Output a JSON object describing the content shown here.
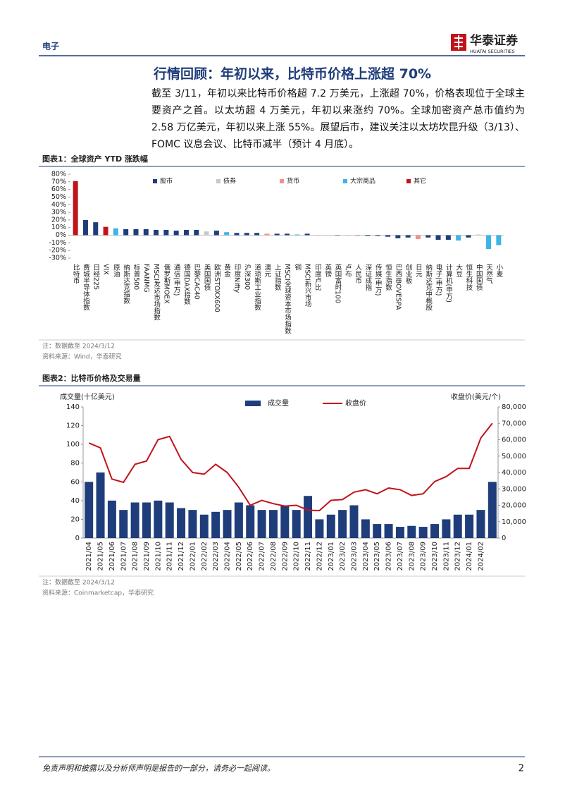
{
  "header": {
    "section": "电子",
    "brand": "华泰证券",
    "brand_en": "HUATAI SECURITIES"
  },
  "heading": "行情回顾：年初以来，比特币价格上涨超 70%",
  "paragraph": "截至 3/11，年初以来比特币价格超 7.2 万美元，上涨超 70%，价格表现位于全球主要资产之首。以太坊超 4 万美元，年初以来涨约 70%。全球加密资产总市值约为 2.58 万亿美元，年初以来上涨 55%。展望后市，建议关注以太坊坎昆升级（3/13）、FOMC 议息会议、比特币减半（预计 4 月底）。",
  "chart_data": [
    {
      "type": "bar",
      "title": "图表1：全球资产 YTD 涨跌幅",
      "categories": [
        "比特币",
        "费城半导体指数",
        "日经225",
        "VIX",
        "原油",
        "纳斯达克指数",
        "标普500",
        "FAANMG",
        "MSCI发达市场指数",
        "俄罗斯MOEX",
        "通信(申万)",
        "德国DAX指数",
        "巴黎CAC40",
        "美国国债",
        "欧洲STOXX600",
        "黄金",
        "印度Nifty",
        "沪深300",
        "道琼斯工业指数",
        "澳元",
        "上证指数",
        "MSCI全球资本市场指数",
        "铜",
        "MSCI新兴市场",
        "印度卢比",
        "英镑",
        "英国富时100",
        "卢布",
        "人民币",
        "深证成指",
        "传媒(申万)",
        "恒生指数",
        "巴西IBOVESPA",
        "创业板",
        "日元",
        "纳斯达克中概股",
        "电子(申万)",
        "计算机(申万)",
        "大豆",
        "恒生科技",
        "中国国债",
        "天然气",
        "小麦"
      ],
      "series": [
        {
          "name": "股市",
          "color": "#1f3d7a",
          "values": [
            null,
            20,
            17,
            null,
            null,
            8,
            8,
            8,
            7,
            7,
            6,
            7,
            7,
            null,
            6,
            null,
            3,
            3,
            3,
            null,
            2,
            2,
            null,
            2,
            null,
            null,
            -0.5,
            null,
            null,
            -1,
            -1,
            -2,
            -4,
            -3,
            null,
            -3,
            -6,
            -6,
            null,
            -3,
            null,
            null,
            null
          ]
        },
        {
          "name": "债券",
          "color": "#c8c8c8",
          "values": [
            null,
            null,
            null,
            null,
            null,
            null,
            null,
            null,
            null,
            null,
            null,
            null,
            null,
            5,
            null,
            null,
            null,
            null,
            null,
            null,
            null,
            null,
            null,
            null,
            null,
            null,
            null,
            null,
            null,
            null,
            null,
            null,
            null,
            null,
            null,
            null,
            null,
            null,
            null,
            null,
            1,
            null,
            null
          ]
        },
        {
          "name": "货币",
          "color": "#f28e8e",
          "values": [
            null,
            null,
            null,
            null,
            null,
            null,
            null,
            null,
            null,
            null,
            null,
            null,
            null,
            null,
            null,
            null,
            null,
            null,
            null,
            2,
            null,
            null,
            null,
            null,
            0.3,
            -0.3,
            null,
            -0.5,
            -1,
            null,
            null,
            null,
            null,
            null,
            -5,
            null,
            null,
            null,
            null,
            null,
            null,
            null,
            null
          ]
        },
        {
          "name": "大宗商品",
          "color": "#3cb4e6",
          "values": [
            null,
            null,
            null,
            null,
            9,
            null,
            null,
            null,
            null,
            null,
            null,
            null,
            null,
            null,
            null,
            4,
            null,
            null,
            null,
            null,
            null,
            null,
            1,
            null,
            null,
            null,
            null,
            null,
            null,
            null,
            null,
            null,
            null,
            null,
            null,
            null,
            null,
            null,
            -7,
            null,
            null,
            -18,
            -13
          ]
        },
        {
          "name": "其它",
          "color": "#c0141c",
          "values": [
            71,
            null,
            null,
            11,
            null,
            null,
            null,
            null,
            null,
            null,
            null,
            null,
            null,
            null,
            null,
            null,
            null,
            null,
            null,
            null,
            null,
            null,
            null,
            null,
            null,
            null,
            null,
            null,
            null,
            null,
            null,
            null,
            null,
            null,
            null,
            null,
            null,
            null,
            null,
            null,
            null,
            null,
            null
          ]
        }
      ],
      "ylim": [
        -30,
        80
      ],
      "yticks": [
        {
          "value": -30,
          "label": "-30%"
        },
        {
          "value": -20,
          "label": "-20%"
        },
        {
          "value": -10,
          "label": "-10%"
        },
        {
          "value": 0,
          "label": "0%"
        },
        {
          "value": 10,
          "label": "10%"
        },
        {
          "value": 20,
          "label": "20%"
        },
        {
          "value": 30,
          "label": "30%"
        },
        {
          "value": 40,
          "label": "40%"
        },
        {
          "value": 50,
          "label": "50%"
        },
        {
          "value": 60,
          "label": "60%"
        },
        {
          "value": 70,
          "label": "70%"
        },
        {
          "value": 80,
          "label": "80%"
        }
      ],
      "note": "注：数据截至 2024/3/12",
      "source": "资料来源：Wind，华泰研究"
    },
    {
      "type": "combo",
      "title": "图表2：比特币价格及交易量",
      "y_label": "成交量(十亿美元)",
      "y2_label": "收盘价(美元/个)",
      "categories": [
        "2021/04",
        "2021/05",
        "2021/06",
        "2021/07",
        "2021/08",
        "2021/09",
        "2021/10",
        "2021/11",
        "2021/12",
        "2022/01",
        "2022/02",
        "2022/03",
        "2022/04",
        "2022/05",
        "2022/06",
        "2022/07",
        "2022/08",
        "2022/09",
        "2022/10",
        "2022/11",
        "2022/12",
        "2023/01",
        "2023/02",
        "2023/03",
        "2023/04",
        "2023/05",
        "2023/06",
        "2023/07",
        "2023/08",
        "2023/09",
        "2023/10",
        "2023/11",
        "2023/12",
        "2024/01",
        "2024/02",
        null
      ],
      "series": [
        {
          "name": "成交量",
          "color": "#1f3d7a",
          "values": [
            60,
            70,
            40,
            30,
            38,
            38,
            40,
            38,
            32,
            30,
            25,
            28,
            30,
            38,
            35,
            30,
            30,
            35,
            30,
            45,
            20,
            25,
            30,
            35,
            20,
            15,
            15,
            12,
            13,
            12,
            15,
            20,
            25,
            25,
            30,
            60
          ]
        },
        {
          "name": "收盘价",
          "color": "#c0141c",
          "axis": "y2",
          "values": [
            58000,
            55000,
            36000,
            34000,
            45000,
            47000,
            60000,
            62000,
            48000,
            40000,
            39000,
            45000,
            40000,
            31000,
            20000,
            23000,
            21000,
            19500,
            20000,
            17000,
            16800,
            23000,
            23500,
            28000,
            29500,
            27000,
            30500,
            29500,
            26000,
            27000,
            34500,
            37500,
            42500,
            42500,
            61000,
            70000
          ]
        }
      ],
      "ylim": [
        0,
        140
      ],
      "yticks": [
        0,
        20,
        40,
        60,
        80,
        100,
        120,
        140
      ],
      "y2lim": [
        0,
        80000
      ],
      "y2ticks": [
        {
          "value": 0,
          "label": "0"
        },
        {
          "value": 10000,
          "label": "10,000"
        },
        {
          "value": 20000,
          "label": "20,000"
        },
        {
          "value": 30000,
          "label": "30,000"
        },
        {
          "value": 40000,
          "label": "40,000"
        },
        {
          "value": 50000,
          "label": "50,000"
        },
        {
          "value": 60000,
          "label": "60,000"
        },
        {
          "value": 70000,
          "label": "70,000"
        },
        {
          "value": 80000,
          "label": "80,000"
        }
      ],
      "note": "注：数据截至 2024/3/12",
      "source": "资料来源：Coinmarketcap，华泰研究"
    }
  ],
  "footer": {
    "disclaimer": "免责声明和披露以及分析师声明是报告的一部分，请务必一起阅读。",
    "page": "2"
  }
}
